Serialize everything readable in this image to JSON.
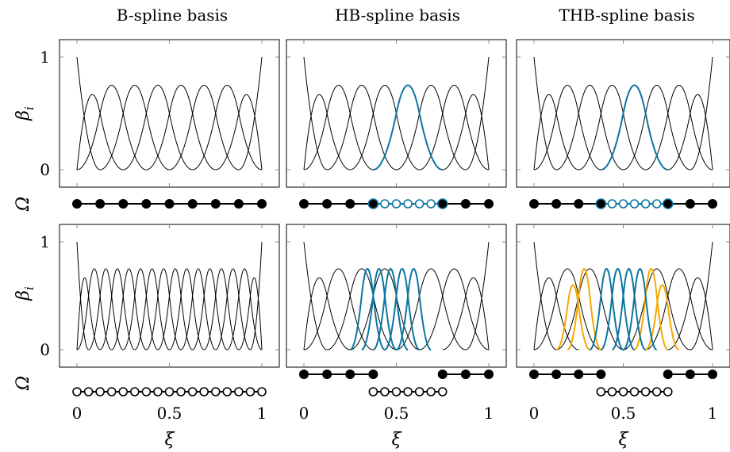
{
  "columns": [
    {
      "title": "B-spline basis"
    },
    {
      "title": "HB-spline basis"
    },
    {
      "title": "THB-spline basis"
    }
  ],
  "ylabel": "β",
  "ylabel_sub": "i",
  "mesh_label": "Ω",
  "xlabel": "ξ",
  "y_ticks": [
    "0",
    "1"
  ],
  "x_ticks": [
    "0",
    "0.5",
    "1"
  ],
  "colors": {
    "black": "#000000",
    "blue": "#0b76a0",
    "orange": "#f5a800"
  },
  "chart_data": [
    {
      "type": "line",
      "row": 0,
      "col": 0,
      "degree": 2,
      "xlim": [
        0,
        1
      ],
      "ylim": [
        0,
        1
      ],
      "series": [
        {
          "color": "black",
          "knots": [
            0,
            0,
            0,
            0.125,
            0.25,
            0.375,
            0.5,
            0.625,
            0.75,
            0.875,
            1,
            1,
            1
          ],
          "indices": [
            0,
            1,
            2,
            3,
            4,
            5,
            6,
            7,
            8,
            9
          ],
          "scales": []
        }
      ],
      "mesh": [
        {
          "level": 0,
          "color": "black",
          "points": [
            0,
            0.125,
            0.25,
            0.375,
            0.5,
            0.625,
            0.75,
            0.875,
            1
          ],
          "open": []
        }
      ]
    },
    {
      "type": "line",
      "row": 0,
      "col": 1,
      "degree": 2,
      "xlim": [
        0,
        1
      ],
      "ylim": [
        0,
        1
      ],
      "series": [
        {
          "color": "black",
          "knots": [
            0,
            0,
            0,
            0.125,
            0.25,
            0.375,
            0.5,
            0.625,
            0.75,
            0.875,
            1,
            1,
            1
          ],
          "indices": [
            0,
            1,
            2,
            3,
            4,
            6,
            7,
            8,
            9
          ],
          "scales": []
        },
        {
          "color": "blue",
          "knots": [
            0,
            0,
            0,
            0.125,
            0.25,
            0.375,
            0.5,
            0.625,
            0.75,
            0.875,
            1,
            1,
            1
          ],
          "indices": [
            5
          ],
          "scales": []
        }
      ],
      "mesh": [
        {
          "level": 0,
          "color": "black",
          "points": [
            0,
            0.125,
            0.25,
            0.375,
            0.75,
            0.875,
            1
          ],
          "open": []
        },
        {
          "level": 0,
          "color": "blue",
          "points": [
            0.375,
            0.4375,
            0.5,
            0.5625,
            0.625,
            0.6875,
            0.75
          ],
          "open": [
            0.4375,
            0.5,
            0.5625,
            0.625,
            0.6875
          ]
        }
      ]
    },
    {
      "type": "line",
      "row": 0,
      "col": 2,
      "degree": 2,
      "xlim": [
        0,
        1
      ],
      "ylim": [
        0,
        1
      ],
      "series": [
        {
          "color": "black",
          "knots": [
            0,
            0,
            0,
            0.125,
            0.25,
            0.375,
            0.5,
            0.625,
            0.75,
            0.875,
            1,
            1,
            1
          ],
          "indices": [
            0,
            1,
            2,
            3,
            4,
            6,
            7,
            8,
            9
          ],
          "scales": []
        },
        {
          "color": "blue",
          "knots": [
            0,
            0,
            0,
            0.125,
            0.25,
            0.375,
            0.5,
            0.625,
            0.75,
            0.875,
            1,
            1,
            1
          ],
          "indices": [
            5
          ],
          "scales": []
        }
      ],
      "mesh": [
        {
          "level": 0,
          "color": "black",
          "points": [
            0,
            0.125,
            0.25,
            0.375,
            0.75,
            0.875,
            1
          ],
          "open": []
        },
        {
          "level": 0,
          "color": "blue",
          "points": [
            0.375,
            0.4375,
            0.5,
            0.5625,
            0.625,
            0.6875,
            0.75
          ],
          "open": [
            0.4375,
            0.5,
            0.5625,
            0.625,
            0.6875
          ]
        }
      ]
    },
    {
      "type": "line",
      "row": 1,
      "col": 0,
      "degree": 2,
      "xlim": [
        0,
        1
      ],
      "ylim": [
        0,
        1
      ],
      "series": [
        {
          "color": "black",
          "knots": [
            0,
            0,
            0,
            0.0625,
            0.125,
            0.1875,
            0.25,
            0.3125,
            0.375,
            0.4375,
            0.5,
            0.5625,
            0.625,
            0.6875,
            0.75,
            0.8125,
            0.875,
            0.9375,
            1,
            1,
            1
          ],
          "indices": [
            0,
            1,
            2,
            3,
            4,
            5,
            6,
            7,
            8,
            9,
            10,
            11,
            12,
            13,
            14,
            15,
            16,
            17
          ],
          "scales": []
        }
      ],
      "mesh": [
        {
          "level": 1,
          "color": "black",
          "points": [
            0,
            0.0625,
            0.125,
            0.1875,
            0.25,
            0.3125,
            0.375,
            0.4375,
            0.5,
            0.5625,
            0.625,
            0.6875,
            0.75,
            0.8125,
            0.875,
            0.9375,
            1
          ],
          "open": [
            0,
            0.0625,
            0.125,
            0.1875,
            0.25,
            0.3125,
            0.375,
            0.4375,
            0.5,
            0.5625,
            0.625,
            0.6875,
            0.75,
            0.8125,
            0.875,
            0.9375,
            1
          ]
        }
      ]
    },
    {
      "type": "line",
      "row": 1,
      "col": 1,
      "degree": 2,
      "xlim": [
        0,
        1
      ],
      "ylim": [
        0,
        1
      ],
      "series": [
        {
          "color": "black",
          "knots": [
            0,
            0,
            0,
            0.125,
            0.25,
            0.375,
            0.5,
            0.625,
            0.75,
            0.875,
            1,
            1,
            1
          ],
          "indices": [
            0,
            1,
            2,
            3,
            4,
            6,
            7,
            8,
            9
          ],
          "scales": []
        },
        {
          "color": "blue",
          "knots": [
            0,
            0,
            0,
            0.0625,
            0.125,
            0.1875,
            0.25,
            0.3125,
            0.375,
            0.4375,
            0.5,
            0.5625,
            0.625,
            0.6875,
            0.75,
            0.8125,
            0.875,
            0.9375,
            1,
            1,
            1
          ],
          "indices": [
            6,
            7,
            8,
            9,
            10
          ],
          "scales": []
        }
      ],
      "mesh": [
        {
          "level": 0,
          "color": "black",
          "points": [
            0,
            0.125,
            0.25,
            0.375
          ],
          "open": []
        },
        {
          "level": 0,
          "color": "black",
          "points": [
            0.75,
            0.875,
            1
          ],
          "open": []
        },
        {
          "level": 1,
          "color": "black",
          "points": [
            0.375,
            0.4375,
            0.5,
            0.5625,
            0.625,
            0.6875,
            0.75
          ],
          "open": [
            0.375,
            0.4375,
            0.5,
            0.5625,
            0.625,
            0.6875,
            0.75
          ]
        }
      ]
    },
    {
      "type": "line",
      "row": 1,
      "col": 2,
      "degree": 2,
      "xlim": [
        0,
        1
      ],
      "ylim": [
        0,
        1
      ],
      "series": [
        {
          "color": "black",
          "knots": [
            0,
            0,
            0,
            0.125,
            0.25,
            0.375,
            0.5,
            0.625,
            0.75,
            0.875,
            1,
            1,
            1
          ],
          "indices": [
            0,
            1,
            2,
            3,
            6,
            7,
            8,
            9
          ],
          "scales": []
        },
        {
          "color": "orange",
          "knots": [
            0,
            0,
            0,
            0.0625,
            0.125,
            0.1875,
            0.25,
            0.3125,
            0.375,
            0.4375,
            0.5,
            0.5625,
            0.625,
            0.6875,
            0.75,
            0.8125,
            0.875,
            0.9375,
            1,
            1,
            1
          ],
          "indices": [
            4,
            5,
            11,
            12
          ],
          "scales": [
            0.8,
            1,
            1,
            0.8
          ]
        },
        {
          "color": "blue",
          "knots": [
            0,
            0,
            0,
            0.0625,
            0.125,
            0.1875,
            0.25,
            0.3125,
            0.375,
            0.4375,
            0.5,
            0.5625,
            0.625,
            0.6875,
            0.75,
            0.8125,
            0.875,
            0.9375,
            1,
            1,
            1
          ],
          "indices": [
            7,
            8,
            9,
            10
          ],
          "scales": []
        }
      ],
      "mesh": [
        {
          "level": 0,
          "color": "black",
          "points": [
            0,
            0.125,
            0.25,
            0.375
          ],
          "open": []
        },
        {
          "level": 0,
          "color": "black",
          "points": [
            0.75,
            0.875,
            1
          ],
          "open": []
        },
        {
          "level": 1,
          "color": "black",
          "points": [
            0.375,
            0.4375,
            0.5,
            0.5625,
            0.625,
            0.6875,
            0.75
          ],
          "open": [
            0.375,
            0.4375,
            0.5,
            0.5625,
            0.625,
            0.6875,
            0.75
          ]
        }
      ]
    }
  ]
}
